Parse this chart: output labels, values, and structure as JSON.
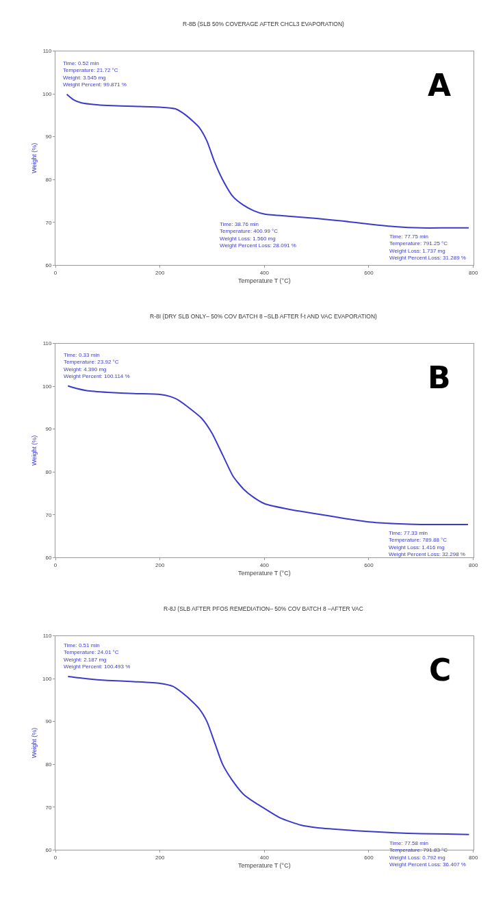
{
  "chart_data": [
    {
      "type": "line",
      "title": "R-8B (SLB 50% COVERAGE AFTER CHCL3 EVAPORATION)",
      "xlabel": "Temperature T (°C)",
      "ylabel": "Weight (%)",
      "xlim": [
        0,
        800
      ],
      "xticks": [
        0,
        200,
        400,
        600,
        800
      ],
      "ylim": [
        60,
        110
      ],
      "yticks": [
        60,
        70,
        80,
        90,
        100,
        110
      ],
      "line_style": "solid",
      "marker": "none",
      "series": [
        {
          "color": "#3a3acc",
          "x": [
            21.72,
            35,
            50,
            75,
            100,
            150,
            200,
            230,
            250,
            275,
            290,
            305,
            320,
            340,
            360,
            380,
            400.99,
            450,
            500,
            550,
            600,
            650,
            700,
            750,
            791.25
          ],
          "values": [
            99.9,
            98.6,
            97.9,
            97.5,
            97.3,
            97.1,
            96.9,
            96.5,
            95,
            92.2,
            89,
            84,
            80,
            76,
            74,
            72.7,
            71.9,
            71.4,
            70.9,
            70.3,
            69.6,
            69,
            68.7,
            68.7,
            68.7
          ]
        }
      ],
      "annotations": [
        {
          "text": "Time: 0.52 min\nTemperature: 21.72 °C\nWeight: 3.545 mg\nWeight Percent: 99.871 %",
          "x": 21.72,
          "y": 99.9
        },
        {
          "text": "Time: 38.76 min\nTemperature: 400.99 °C\nWeight Loss: 1.560 mg\nWeight Percent Loss: 28.091 %",
          "x": 400.99,
          "y": 71.9
        },
        {
          "text": "Time: 77.75 min\nTemperature: 791.25 °C\nWeight Loss: 1.737 mg\nWeight Percent Loss: 31.289 %",
          "x": 791.25,
          "y": 68.7
        },
        "A"
      ]
    },
    {
      "type": "line",
      "title": "R-8I (DRY SLB ONLY– 50% COV BATCH 8 –SLB AFTER f-t AND VAC EVAPORATION)",
      "xlabel": "Temperature T (°C)",
      "ylabel": "Weight (%)",
      "xlim": [
        0,
        800
      ],
      "xticks": [
        0,
        200,
        400,
        600,
        800
      ],
      "ylim": [
        60,
        110
      ],
      "yticks": [
        60,
        70,
        80,
        90,
        100,
        110
      ],
      "line_style": "solid",
      "marker": "none",
      "series": [
        {
          "color": "#3a3acc",
          "x": [
            23.92,
            40,
            60,
            100,
            150,
            200,
            220,
            235,
            250,
            280,
            300,
            320,
            340,
            360,
            380,
            400,
            450,
            500,
            550,
            600,
            650,
            700,
            750,
            789.88
          ],
          "values": [
            100.1,
            99.5,
            99,
            98.6,
            98.3,
            98.1,
            97.6,
            96.8,
            95.5,
            92.5,
            89,
            84,
            79,
            76,
            74,
            72.6,
            71.2,
            70.2,
            69.2,
            68.3,
            67.9,
            67.7,
            67.7,
            67.7
          ]
        }
      ],
      "annotations": [
        {
          "text": "Time: 0.33 min\nTemperature: 23.92 °C\nWeight: 4.390 mg\nWeight Percent: 100.114 %",
          "x": 23.92,
          "y": 100.1
        },
        {
          "text": "Time: 77.33 min\nTemperature: 789.88 °C\nWeight Loss: 1.416 mg\nWeight Percent Loss: 32.298 %",
          "x": 789.88,
          "y": 67.7
        },
        "B"
      ]
    },
    {
      "type": "line",
      "title": "R-8J (SLB AFTER PFOS REMEDIATION– 50% COV BATCH 8 –AFTER VAC",
      "xlabel": "Temperature T (°C)",
      "ylabel": "Weight (%)",
      "xlim": [
        0,
        800
      ],
      "xticks": [
        0,
        200,
        400,
        600,
        800
      ],
      "ylim": [
        60,
        110
      ],
      "yticks": [
        60,
        70,
        80,
        90,
        100,
        110
      ],
      "line_style": "solid",
      "marker": "none",
      "series": [
        {
          "color": "#3a3acc",
          "x": [
            24.01,
            60,
            100,
            150,
            200,
            225,
            250,
            275,
            290,
            305,
            320,
            340,
            360,
            380,
            400,
            430,
            470,
            500,
            550,
            600,
            650,
            700,
            750,
            791.83
          ],
          "values": [
            100.5,
            100,
            99.6,
            99.3,
            98.9,
            98.2,
            96,
            93,
            90,
            85,
            80,
            76,
            73,
            71.2,
            69.7,
            67.5,
            65.8,
            65.2,
            64.7,
            64.3,
            64,
            63.8,
            63.7,
            63.6
          ]
        }
      ],
      "annotations": [
        {
          "text": "Time: 0.51 min\nTemperature: 24.01 °C\nWeight: 2.187 mg\nWeight Percent: 100.493 %",
          "x": 24.01,
          "y": 100.5
        },
        {
          "text": "Time: 77.58 min\nTemperature: 791.83 °C\nWeight Loss: 0.792 mg\nWeight Percent Loss: 36.407 %",
          "x": 791.83,
          "y": 63.6
        },
        "C"
      ]
    }
  ]
}
